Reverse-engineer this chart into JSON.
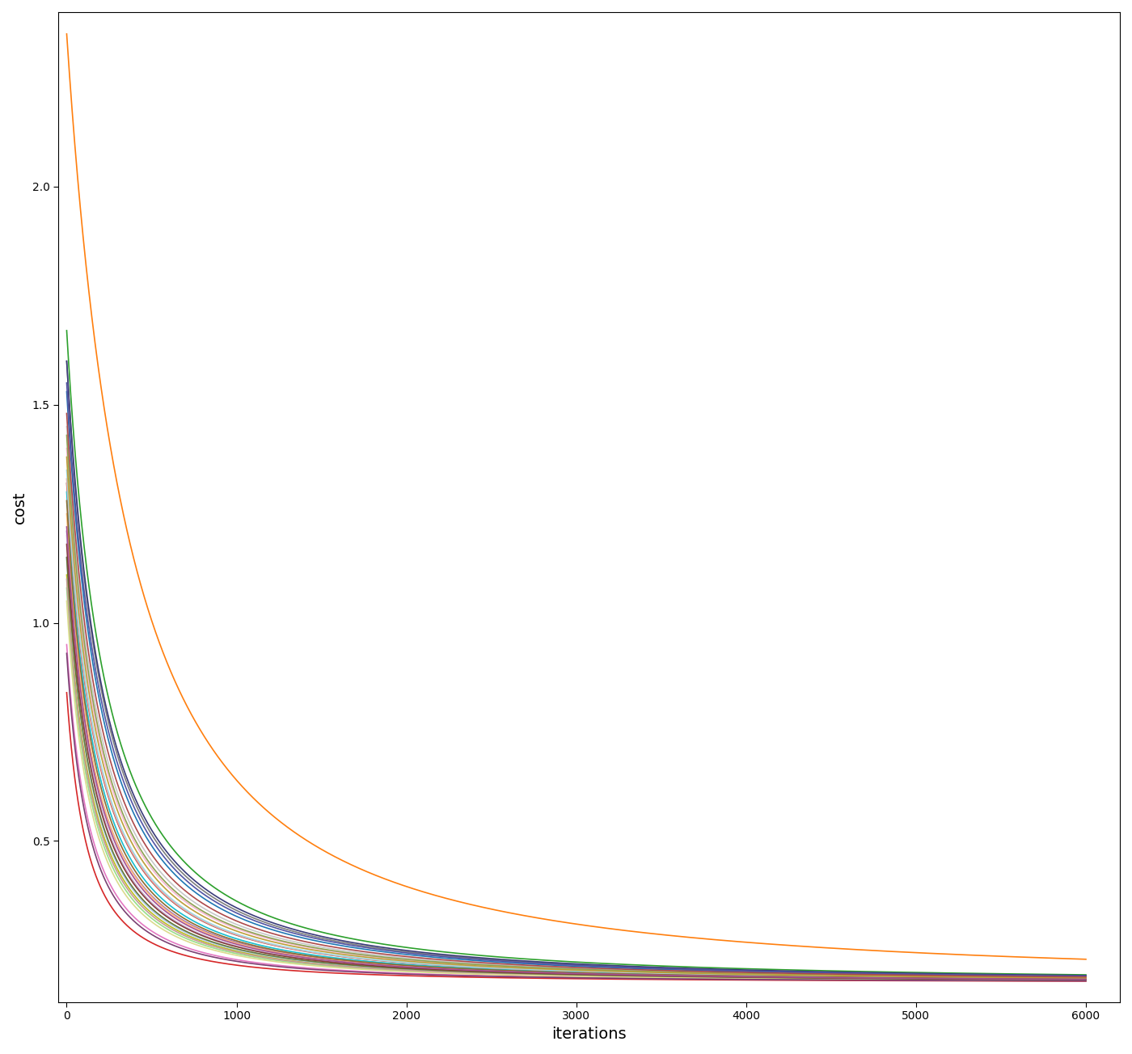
{
  "xlabel": "iterations",
  "ylabel": "cost",
  "xlim": [
    -50,
    6200
  ],
  "ylim": [
    0.13,
    2.4
  ],
  "xticks": [
    0,
    1000,
    2000,
    3000,
    4000,
    5000,
    6000
  ],
  "yticks": [
    0.5,
    1.0,
    1.5,
    2.0
  ],
  "n_iterations": 6001,
  "background_color": "#ffffff",
  "figsize": [
    14.0,
    13.04
  ],
  "dpi": 100,
  "curve_params": [
    {
      "color": "#ff7f0e",
      "start": 2.35,
      "end": 0.175,
      "k": 0.0018
    },
    {
      "color": "#2ca02c",
      "start": 1.67,
      "end": 0.175,
      "k": 0.003
    },
    {
      "color": "#d62728",
      "start": 0.84,
      "end": 0.175,
      "k": 0.0055
    },
    {
      "color": "#9467bd",
      "start": 1.21,
      "end": 0.175,
      "k": 0.004
    },
    {
      "color": "#8c564b",
      "start": 1.32,
      "end": 0.175,
      "k": 0.0038
    },
    {
      "color": "#e377c2",
      "start": 0.95,
      "end": 0.175,
      "k": 0.005
    },
    {
      "color": "#7f7f7f",
      "start": 1.6,
      "end": 0.175,
      "k": 0.0032
    },
    {
      "color": "#bcbd22",
      "start": 1.11,
      "end": 0.175,
      "k": 0.0045
    },
    {
      "color": "#17becf",
      "start": 1.3,
      "end": 0.175,
      "k": 0.004
    },
    {
      "color": "#1f77b4",
      "start": 1.53,
      "end": 0.175,
      "k": 0.0033
    },
    {
      "color": "#aec7e8",
      "start": 1.15,
      "end": 0.175,
      "k": 0.0045
    },
    {
      "color": "#ffbb78",
      "start": 1.25,
      "end": 0.175,
      "k": 0.0042
    },
    {
      "color": "#98df8a",
      "start": 1.08,
      "end": 0.175,
      "k": 0.0047
    },
    {
      "color": "#ff9896",
      "start": 1.33,
      "end": 0.175,
      "k": 0.0038
    },
    {
      "color": "#c5b0d5",
      "start": 1.2,
      "end": 0.175,
      "k": 0.0043
    },
    {
      "color": "#c49c94",
      "start": 1.1,
      "end": 0.175,
      "k": 0.0046
    },
    {
      "color": "#f7b6d2",
      "start": 1.4,
      "end": 0.175,
      "k": 0.0036
    },
    {
      "color": "#c7c7c7",
      "start": 1.45,
      "end": 0.175,
      "k": 0.0035
    },
    {
      "color": "#dbdb8d",
      "start": 1.05,
      "end": 0.175,
      "k": 0.0048
    },
    {
      "color": "#9edae5",
      "start": 1.35,
      "end": 0.175,
      "k": 0.0038
    },
    {
      "color": "#393b79",
      "start": 1.6,
      "end": 0.175,
      "k": 0.0031
    },
    {
      "color": "#637939",
      "start": 1.15,
      "end": 0.175,
      "k": 0.0044
    },
    {
      "color": "#8c6d31",
      "start": 1.28,
      "end": 0.175,
      "k": 0.0041
    },
    {
      "color": "#843c39",
      "start": 1.18,
      "end": 0.175,
      "k": 0.0043
    },
    {
      "color": "#7b4173",
      "start": 0.93,
      "end": 0.175,
      "k": 0.0052
    },
    {
      "color": "#5254a3",
      "start": 1.55,
      "end": 0.175,
      "k": 0.0032
    },
    {
      "color": "#8ca252",
      "start": 1.43,
      "end": 0.175,
      "k": 0.0036
    },
    {
      "color": "#bd9e39",
      "start": 1.38,
      "end": 0.175,
      "k": 0.0037
    },
    {
      "color": "#ad494a",
      "start": 1.48,
      "end": 0.175,
      "k": 0.0034
    },
    {
      "color": "#a55194",
      "start": 1.22,
      "end": 0.175,
      "k": 0.0042
    }
  ]
}
